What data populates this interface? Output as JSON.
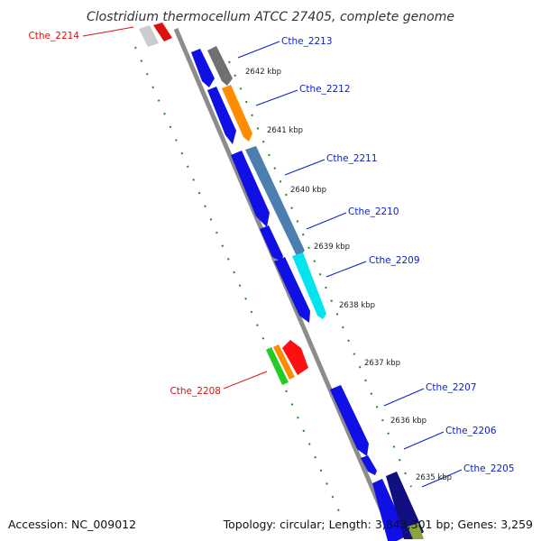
{
  "title": "Clostridium thermocellum ATCC 27405, complete genome",
  "footer": {
    "accession": "Accession: NC_009012",
    "summary": "Topology: circular; Length: 3,843,301 bp; Genes: 3,259"
  },
  "colors": {
    "backbone": "#8c8c8c",
    "tick": "#1e8a1e",
    "forward_label": "#0a1ec8",
    "reverse_label": "#dd1010",
    "gene_blue": "#1010e6"
  },
  "ticks": [
    "2642 kbp",
    "2641 kbp",
    "2640 kbp",
    "2639 kbp",
    "2638 kbp",
    "2637 kbp",
    "2636 kbp",
    "2635 kbp"
  ],
  "genes": [
    {
      "name": "Cthe_2214",
      "strand": "reverse",
      "color": "#dd1010"
    },
    {
      "name": "Cthe_2213",
      "strand": "forward",
      "color": "#707070"
    },
    {
      "name": "Cthe_2212",
      "strand": "forward",
      "color": "#ff8c00"
    },
    {
      "name": "Cthe_2211",
      "strand": "forward",
      "color": "#4a7fb0"
    },
    {
      "name": "Cthe_2210",
      "strand": "forward",
      "color": "#4a7fb0"
    },
    {
      "name": "Cthe_2209",
      "strand": "forward",
      "color": "#00e5ee"
    },
    {
      "name": "Cthe_2208",
      "strand": "reverse",
      "color": "#ff1010"
    },
    {
      "name": "Cthe_2207",
      "strand": "forward",
      "color": "#1010e6"
    },
    {
      "name": "Cthe_2206",
      "strand": "forward",
      "color": "#1010e6"
    },
    {
      "name": "Cthe_2205",
      "strand": "forward",
      "color": "#101080"
    }
  ]
}
